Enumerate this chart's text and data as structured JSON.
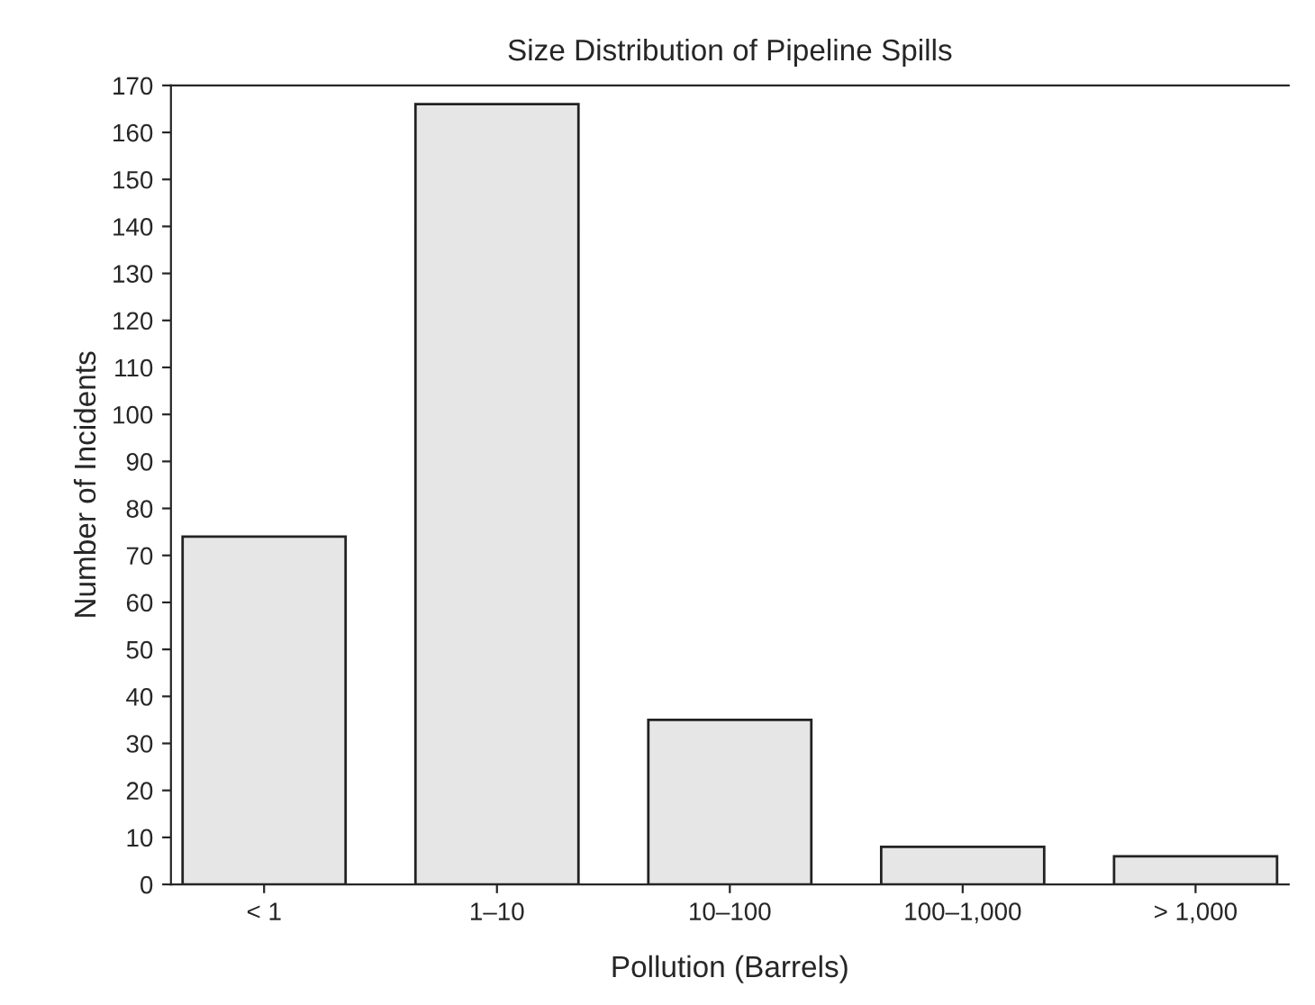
{
  "chart_data": {
    "type": "bar",
    "title": "Size Distribution of Pipeline Spills",
    "xlabel": "Pollution (Barrels)",
    "ylabel": "Number of Incidents",
    "categories": [
      "< 1",
      "1–10",
      "10–100",
      "100–1,000",
      "> 1,000"
    ],
    "values": [
      74,
      166,
      35,
      8,
      6
    ],
    "color": "#e6e6e6",
    "ylim": [
      0,
      170
    ],
    "yticks": [
      0,
      10,
      20,
      30,
      40,
      50,
      60,
      70,
      80,
      90,
      100,
      110,
      120,
      130,
      140,
      150,
      160,
      170
    ],
    "grid": false,
    "legend": false
  }
}
